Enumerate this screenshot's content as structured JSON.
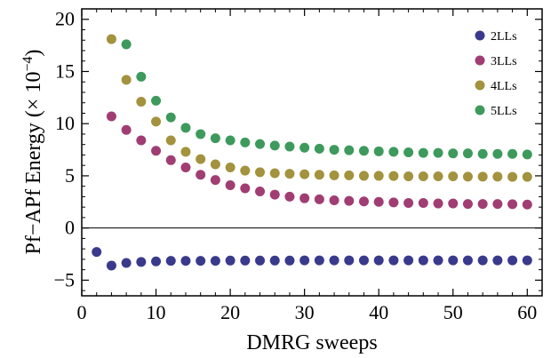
{
  "chart_data": {
    "type": "scatter",
    "title": "",
    "xlabel": "DMRG sweeps",
    "ylabel_main": "Pf−APf Energy (× 10",
    "ylabel_exp": "−4",
    "ylabel_close": ")",
    "xlim": [
      0,
      62
    ],
    "ylim": [
      -6.5,
      21
    ],
    "x_ticks": [
      0,
      10,
      20,
      30,
      40,
      50,
      60
    ],
    "y_ticks": [
      -5,
      0,
      5,
      10,
      15,
      20
    ],
    "x_tick_labels": [
      "0",
      "10",
      "20",
      "30",
      "40",
      "50",
      "60"
    ],
    "y_tick_labels": [
      "−5",
      "0",
      "5",
      "10",
      "15",
      "20"
    ],
    "zero_line": true,
    "grid": false,
    "legend_position": "top-right",
    "series": [
      {
        "name": "2LLs",
        "color": "#3a3a8c",
        "x": [
          2,
          4,
          6,
          8,
          10,
          12,
          14,
          16,
          18,
          20,
          22,
          24,
          26,
          28,
          30,
          32,
          34,
          36,
          38,
          40,
          42,
          44,
          46,
          48,
          50,
          52,
          54,
          56,
          58,
          60
        ],
        "y": [
          -2.3,
          -3.6,
          -3.35,
          -3.25,
          -3.2,
          -3.15,
          -3.15,
          -3.15,
          -3.15,
          -3.12,
          -3.12,
          -3.12,
          -3.12,
          -3.12,
          -3.1,
          -3.1,
          -3.1,
          -3.1,
          -3.1,
          -3.1,
          -3.1,
          -3.1,
          -3.1,
          -3.1,
          -3.1,
          -3.1,
          -3.1,
          -3.1,
          -3.1,
          -3.1
        ]
      },
      {
        "name": "3LLs",
        "color": "#a03d73",
        "x": [
          4,
          6,
          8,
          10,
          12,
          14,
          16,
          18,
          20,
          22,
          24,
          26,
          28,
          30,
          32,
          34,
          36,
          38,
          40,
          42,
          44,
          46,
          48,
          50,
          52,
          54,
          56,
          58,
          60
        ],
        "y": [
          10.7,
          9.4,
          8.4,
          7.4,
          6.5,
          5.8,
          5.1,
          4.6,
          4.1,
          3.8,
          3.5,
          3.2,
          3.0,
          2.85,
          2.75,
          2.65,
          2.6,
          2.55,
          2.5,
          2.45,
          2.4,
          2.4,
          2.35,
          2.35,
          2.3,
          2.3,
          2.3,
          2.28,
          2.25
        ]
      },
      {
        "name": "4LLs",
        "color": "#a3923e",
        "x": [
          4,
          6,
          8,
          10,
          12,
          14,
          16,
          18,
          20,
          22,
          24,
          26,
          28,
          30,
          32,
          34,
          36,
          38,
          40,
          42,
          44,
          46,
          48,
          50,
          52,
          54,
          56,
          58,
          60
        ],
        "y": [
          18.1,
          14.2,
          12.1,
          10.2,
          8.4,
          7.3,
          6.6,
          6.1,
          5.8,
          5.5,
          5.35,
          5.25,
          5.2,
          5.15,
          5.1,
          5.05,
          5.05,
          5.0,
          5.0,
          4.98,
          4.95,
          4.95,
          4.95,
          4.95,
          4.92,
          4.92,
          4.92,
          4.9,
          4.9
        ]
      },
      {
        "name": "5LLs",
        "color": "#3d9a5c",
        "x": [
          6,
          8,
          10,
          12,
          14,
          16,
          18,
          20,
          22,
          24,
          26,
          28,
          30,
          32,
          34,
          36,
          38,
          40,
          42,
          44,
          46,
          48,
          50,
          52,
          54,
          56,
          58,
          60
        ],
        "y": [
          17.6,
          14.5,
          12.2,
          10.6,
          9.6,
          9.0,
          8.6,
          8.4,
          8.2,
          8.05,
          7.9,
          7.8,
          7.7,
          7.6,
          7.5,
          7.45,
          7.4,
          7.35,
          7.3,
          7.25,
          7.2,
          7.2,
          7.15,
          7.15,
          7.1,
          7.1,
          7.1,
          7.05
        ]
      }
    ]
  }
}
